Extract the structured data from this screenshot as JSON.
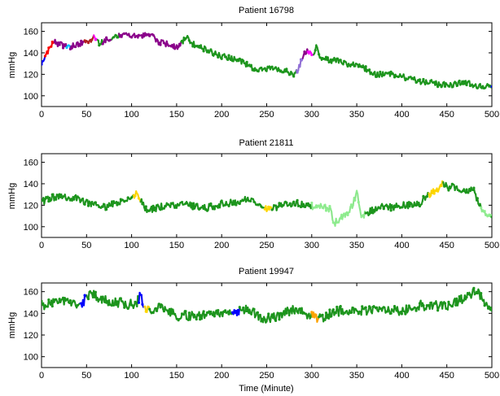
{
  "xlabel": "Time (Minute)",
  "chart_data": [
    {
      "type": "line",
      "title": "Patient 16798",
      "ylabel": "mmHg",
      "xlabel": "",
      "xlim": [
        0,
        500
      ],
      "ylim": [
        90,
        168
      ],
      "xticks": [
        0,
        50,
        100,
        150,
        200,
        250,
        300,
        350,
        400,
        450,
        500
      ],
      "yticks": [
        100,
        120,
        140,
        160
      ],
      "grid": false,
      "seed": 16798,
      "anchors": [
        [
          0,
          128
        ],
        [
          4,
          136
        ],
        [
          10,
          146
        ],
        [
          14,
          150
        ],
        [
          20,
          148
        ],
        [
          30,
          145
        ],
        [
          40,
          148
        ],
        [
          50,
          150
        ],
        [
          58,
          154
        ],
        [
          65,
          148
        ],
        [
          70,
          152
        ],
        [
          80,
          155
        ],
        [
          90,
          157
        ],
        [
          100,
          155
        ],
        [
          110,
          156
        ],
        [
          120,
          157
        ],
        [
          130,
          150
        ],
        [
          140,
          148
        ],
        [
          150,
          145
        ],
        [
          155,
          148
        ],
        [
          160,
          155
        ],
        [
          170,
          147
        ],
        [
          180,
          144
        ],
        [
          190,
          140
        ],
        [
          200,
          137
        ],
        [
          210,
          135
        ],
        [
          220,
          133
        ],
        [
          230,
          128
        ],
        [
          240,
          123
        ],
        [
          250,
          125
        ],
        [
          260,
          126
        ],
        [
          270,
          123
        ],
        [
          280,
          120
        ],
        [
          285,
          125
        ],
        [
          292,
          140
        ],
        [
          298,
          142
        ],
        [
          300,
          136
        ],
        [
          305,
          145
        ],
        [
          310,
          135
        ],
        [
          320,
          133
        ],
        [
          330,
          133
        ],
        [
          340,
          130
        ],
        [
          350,
          128
        ],
        [
          360,
          125
        ],
        [
          370,
          120
        ],
        [
          380,
          120
        ],
        [
          390,
          120
        ],
        [
          400,
          118
        ],
        [
          410,
          116
        ],
        [
          420,
          113
        ],
        [
          430,
          113
        ],
        [
          440,
          111
        ],
        [
          450,
          110
        ],
        [
          460,
          111
        ],
        [
          470,
          113
        ],
        [
          480,
          110
        ],
        [
          490,
          108
        ],
        [
          500,
          110
        ]
      ],
      "noise": 2.6,
      "markers": "#1c961c",
      "segments": [
        [
          0,
          4,
          "#0000ff"
        ],
        [
          4,
          14,
          "#ff0000"
        ],
        [
          14,
          28,
          "#8b008b"
        ],
        [
          28,
          32,
          "#00bfff"
        ],
        [
          32,
          48,
          "#8b008b"
        ],
        [
          48,
          58,
          "#b22222"
        ],
        [
          58,
          62,
          "#ff00ff"
        ],
        [
          62,
          68,
          "#1c961c"
        ],
        [
          68,
          78,
          "#8b008b"
        ],
        [
          78,
          86,
          "#1c961c"
        ],
        [
          86,
          155,
          "#8b008b"
        ],
        [
          155,
          283,
          "#1c961c"
        ],
        [
          283,
          290,
          "#9370db"
        ],
        [
          290,
          296,
          "#8b008b"
        ],
        [
          296,
          302,
          "#ff00ff"
        ],
        [
          302,
          500,
          "#1c961c"
        ]
      ]
    },
    {
      "type": "line",
      "title": "Patient 21811",
      "ylabel": "mmHg",
      "xlabel": "",
      "xlim": [
        0,
        500
      ],
      "ylim": [
        90,
        168
      ],
      "xticks": [
        0,
        50,
        100,
        150,
        200,
        250,
        300,
        350,
        400,
        450,
        500
      ],
      "yticks": [
        100,
        120,
        140,
        160
      ],
      "grid": false,
      "seed": 21811,
      "anchors": [
        [
          0,
          123
        ],
        [
          10,
          127
        ],
        [
          20,
          128
        ],
        [
          30,
          127
        ],
        [
          40,
          126
        ],
        [
          50,
          123
        ],
        [
          60,
          120
        ],
        [
          70,
          118
        ],
        [
          80,
          122
        ],
        [
          90,
          124
        ],
        [
          100,
          127
        ],
        [
          105,
          130
        ],
        [
          110,
          124
        ],
        [
          115,
          117
        ],
        [
          120,
          116
        ],
        [
          130,
          118
        ],
        [
          140,
          121
        ],
        [
          150,
          118
        ],
        [
          160,
          121
        ],
        [
          170,
          119
        ],
        [
          180,
          117
        ],
        [
          190,
          119
        ],
        [
          200,
          121
        ],
        [
          210,
          122
        ],
        [
          220,
          124
        ],
        [
          230,
          126
        ],
        [
          240,
          123
        ],
        [
          250,
          117
        ],
        [
          260,
          118
        ],
        [
          270,
          121
        ],
        [
          280,
          122
        ],
        [
          290,
          121
        ],
        [
          300,
          119
        ],
        [
          310,
          119
        ],
        [
          320,
          117
        ],
        [
          325,
          103
        ],
        [
          330,
          107
        ],
        [
          340,
          112
        ],
        [
          345,
          120
        ],
        [
          350,
          132
        ],
        [
          355,
          108
        ],
        [
          360,
          112
        ],
        [
          370,
          117
        ],
        [
          380,
          119
        ],
        [
          390,
          118
        ],
        [
          400,
          121
        ],
        [
          410,
          120
        ],
        [
          420,
          122
        ],
        [
          430,
          130
        ],
        [
          440,
          135
        ],
        [
          445,
          140
        ],
        [
          450,
          137
        ],
        [
          460,
          137
        ],
        [
          470,
          134
        ],
        [
          480,
          134
        ],
        [
          485,
          123
        ],
        [
          490,
          115
        ],
        [
          500,
          108
        ]
      ],
      "noise": 3.2,
      "markers": "#1c961c",
      "segments": [
        [
          0,
          500,
          "#1c961c"
        ],
        [
          102,
          110,
          "#ffd700"
        ],
        [
          248,
          256,
          "#ffd700"
        ],
        [
          300,
          360,
          "#90ee90"
        ],
        [
          430,
          446,
          "#ffd700"
        ],
        [
          488,
          500,
          "#90ee90"
        ]
      ]
    },
    {
      "type": "line",
      "title": "Patient 19947",
      "ylabel": "mmHg",
      "xlabel": "Time (Minute)",
      "xlim": [
        0,
        500
      ],
      "ylim": [
        90,
        168
      ],
      "xticks": [
        0,
        50,
        100,
        150,
        200,
        250,
        300,
        350,
        400,
        450,
        500
      ],
      "yticks": [
        100,
        120,
        140,
        160
      ],
      "grid": false,
      "seed": 19947,
      "anchors": [
        [
          0,
          147
        ],
        [
          10,
          150
        ],
        [
          20,
          152
        ],
        [
          30,
          152
        ],
        [
          40,
          148
        ],
        [
          45,
          147
        ],
        [
          50,
          158
        ],
        [
          60,
          156
        ],
        [
          70,
          152
        ],
        [
          80,
          150
        ],
        [
          90,
          150
        ],
        [
          100,
          148
        ],
        [
          105,
          148
        ],
        [
          110,
          157
        ],
        [
          115,
          142
        ],
        [
          120,
          143
        ],
        [
          130,
          146
        ],
        [
          140,
          142
        ],
        [
          150,
          138
        ],
        [
          160,
          138
        ],
        [
          170,
          138
        ],
        [
          180,
          138
        ],
        [
          190,
          139
        ],
        [
          200,
          140
        ],
        [
          210,
          141
        ],
        [
          220,
          142
        ],
        [
          230,
          143
        ],
        [
          240,
          138
        ],
        [
          250,
          135
        ],
        [
          260,
          137
        ],
        [
          270,
          140
        ],
        [
          280,
          144
        ],
        [
          290,
          142
        ],
        [
          300,
          137
        ],
        [
          310,
          135
        ],
        [
          320,
          139
        ],
        [
          330,
          142
        ],
        [
          340,
          143
        ],
        [
          350,
          141
        ],
        [
          360,
          143
        ],
        [
          370,
          143
        ],
        [
          380,
          142
        ],
        [
          390,
          144
        ],
        [
          400,
          142
        ],
        [
          410,
          144
        ],
        [
          420,
          148
        ],
        [
          430,
          146
        ],
        [
          440,
          147
        ],
        [
          450,
          146
        ],
        [
          460,
          150
        ],
        [
          470,
          154
        ],
        [
          480,
          159
        ],
        [
          485,
          162
        ],
        [
          490,
          150
        ],
        [
          500,
          145
        ]
      ],
      "noise": 4.5,
      "markers": "#1c961c",
      "segments": [
        [
          0,
          500,
          "#1c961c"
        ],
        [
          43,
          50,
          "#0000ff"
        ],
        [
          108,
          114,
          "#0000ff"
        ],
        [
          114,
          120,
          "#ffd700"
        ],
        [
          212,
          220,
          "#0000ff"
        ],
        [
          300,
          308,
          "#ffa500"
        ]
      ]
    }
  ]
}
